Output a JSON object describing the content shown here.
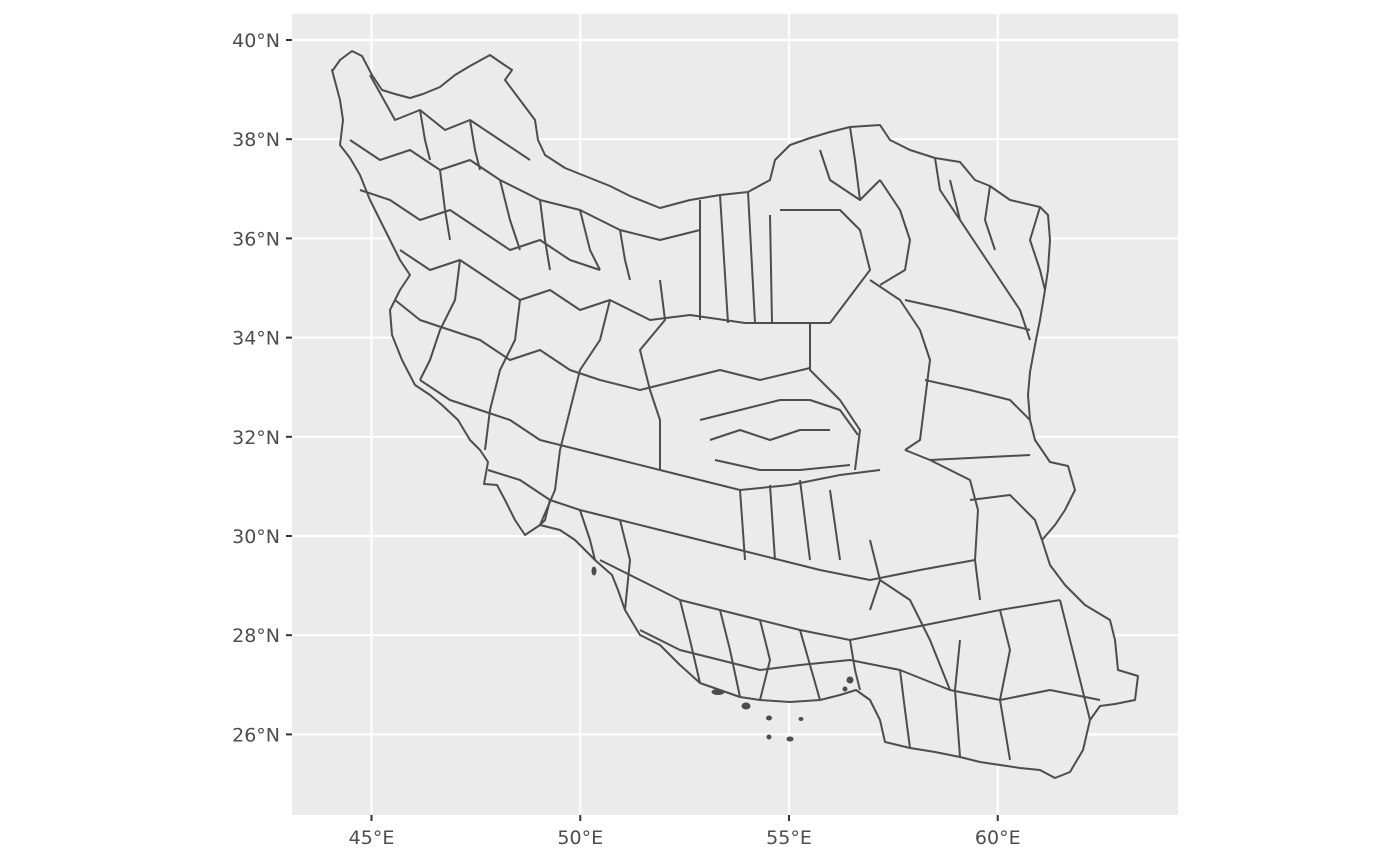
{
  "map": {
    "panel_background": "#EBEBEB",
    "grid_color": "#FFFFFF",
    "boundary_color": "#4D4D4D",
    "fill_color": "#EBEBEB",
    "x_axis": {
      "ticks": [
        {
          "value": 45,
          "label": "45°E"
        },
        {
          "value": 50,
          "label": "50°E"
        },
        {
          "value": 55,
          "label": "55°E"
        },
        {
          "value": 60,
          "label": "60°E"
        }
      ],
      "range": [
        43.1,
        64.3
      ]
    },
    "y_axis": {
      "ticks": [
        {
          "value": 40,
          "label": "40°N"
        },
        {
          "value": 38,
          "label": "38°N"
        },
        {
          "value": 36,
          "label": "36°N"
        },
        {
          "value": 34,
          "label": "34°N"
        },
        {
          "value": 32,
          "label": "32°N"
        },
        {
          "value": 30,
          "label": "30°N"
        },
        {
          "value": 28,
          "label": "28°N"
        },
        {
          "value": 26,
          "label": "26°N"
        }
      ],
      "range": [
        24.2,
        40.5
      ]
    },
    "region_type": "administrative county boundaries"
  }
}
